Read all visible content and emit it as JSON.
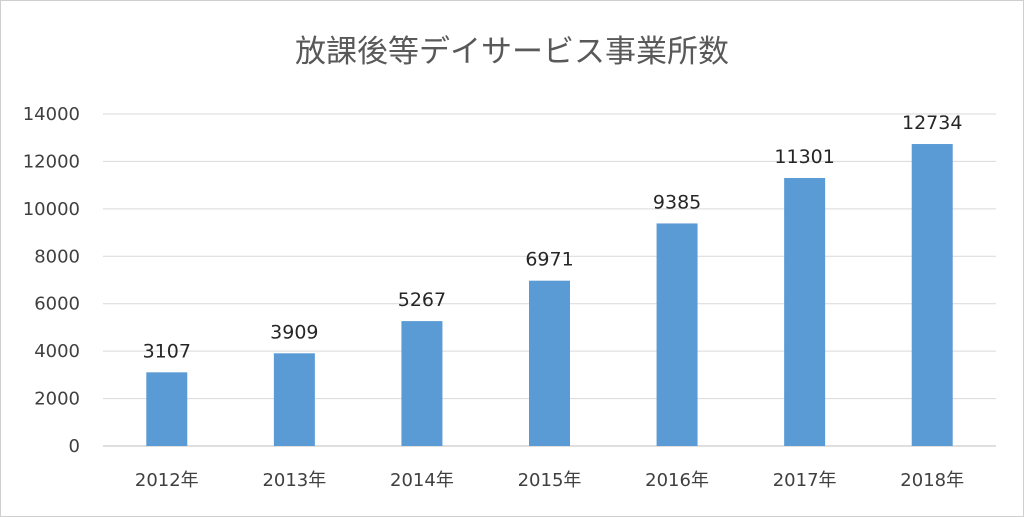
{
  "chart_data": {
    "type": "bar",
    "title": "放課後等デイサービス事業所数",
    "xlabel": "",
    "ylabel": "",
    "categories": [
      "2012年",
      "2013年",
      "2014年",
      "2015年",
      "2016年",
      "2017年",
      "2018年"
    ],
    "values": [
      3107,
      3909,
      5267,
      6971,
      9385,
      11301,
      12734
    ],
    "data_labels": [
      "3107",
      "3909",
      "5267",
      "6971",
      "9385",
      "11301",
      "12734"
    ],
    "ylim": [
      0,
      14000
    ],
    "y_ticks": [
      0,
      2000,
      4000,
      6000,
      8000,
      10000,
      12000,
      14000
    ],
    "y_tick_labels": [
      "0",
      "2000",
      "4000",
      "6000",
      "8000",
      "10000",
      "12000",
      "14000"
    ],
    "grid": true,
    "legend": "none",
    "bar_color": "#5b9bd5",
    "grid_color": "#d9d9d9",
    "title_color": "#595959"
  }
}
